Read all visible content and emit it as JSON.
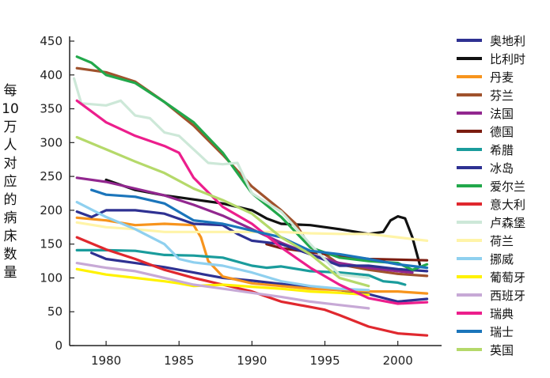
{
  "chart_data": {
    "type": "line",
    "ylabel": "每10万人对应的病床数量",
    "xlabel": "",
    "xlim": [
      1977.5,
      2003
    ],
    "ylim": [
      0,
      450
    ],
    "xticks": [
      1980,
      1985,
      1990,
      1995,
      2000
    ],
    "yticks": [
      0,
      50,
      100,
      150,
      200,
      250,
      300,
      350,
      400,
      450
    ],
    "grid": false,
    "legend": "right",
    "series": [
      {
        "name": "奥地利",
        "color": "#2e3192",
        "x": [
          1979,
          1980,
          1982,
          1984,
          1986,
          1988,
          1990,
          1992,
          1994,
          1996,
          1998,
          2000,
          2002
        ],
        "y": [
          137,
          128,
          122,
          116,
          108,
          100,
          96,
          91,
          87,
          82,
          76,
          65,
          69
        ]
      },
      {
        "name": "比利时",
        "color": "#111111",
        "x": [
          1980,
          1982,
          1984,
          1986,
          1988,
          1990,
          1991,
          1992,
          1994,
          1996,
          1998,
          1999,
          1999.5,
          2000,
          2000.5,
          2001,
          2001.5
        ],
        "y": [
          245,
          230,
          222,
          216,
          210,
          200,
          188,
          180,
          178,
          172,
          165,
          168,
          185,
          191,
          188,
          160,
          120
        ]
      },
      {
        "name": "丹麦",
        "color": "#f7941d",
        "x": [
          1978,
          1980,
          1982,
          1984,
          1986,
          1986.5,
          1987,
          1988,
          1990,
          1992,
          1994,
          1996,
          1998,
          2000,
          2002
        ],
        "y": [
          189,
          185,
          178,
          180,
          178,
          160,
          125,
          102,
          92,
          88,
          84,
          82,
          80,
          80,
          77
        ]
      },
      {
        "name": "芬兰",
        "color": "#a0522d",
        "x": [
          1978,
          1980,
          1982,
          1984,
          1986,
          1988,
          1990,
          1992,
          1993,
          1994,
          1995,
          1996,
          1998,
          2000,
          2002
        ],
        "y": [
          410,
          404,
          390,
          360,
          325,
          282,
          235,
          200,
          180,
          145,
          135,
          120,
          112,
          106,
          103
        ]
      },
      {
        "name": "法国",
        "color": "#92278f",
        "x": [
          1978,
          1980,
          1982,
          1984,
          1986,
          1988,
          1990,
          1992,
          1994,
          1996,
          1998,
          2000,
          2001
        ],
        "y": [
          248,
          242,
          232,
          222,
          208,
          192,
          172,
          152,
          135,
          122,
          115,
          110,
          108
        ]
      },
      {
        "name": "德国",
        "color": "#7b1c10",
        "x": [
          1991,
          1992,
          1994,
          1996,
          1998,
          2000,
          2002
        ],
        "y": [
          150,
          144,
          138,
          133,
          128,
          127,
          126
        ]
      },
      {
        "name": "希腊",
        "color": "#1a9c9c",
        "x": [
          1978,
          1980,
          1982,
          1984,
          1986,
          1988,
          1990,
          1991,
          1992,
          1994,
          1996,
          1998,
          1999,
          2000,
          2000.5
        ],
        "y": [
          141,
          141,
          140,
          134,
          133,
          130,
          118,
          115,
          117,
          110,
          108,
          104,
          95,
          93,
          90
        ]
      },
      {
        "name": "冰岛",
        "color": "#2e3192",
        "x": [
          1978,
          1979,
          1980,
          1982,
          1984,
          1986,
          1988,
          1989,
          1990,
          1992,
          1994,
          1996,
          1998,
          2000,
          2002
        ],
        "y": [
          198,
          190,
          200,
          200,
          195,
          180,
          178,
          165,
          155,
          150,
          135,
          118,
          118,
          113,
          110
        ]
      },
      {
        "name": "爱尔兰",
        "color": "#22a84b",
        "x": [
          1978,
          1979,
          1980,
          1982,
          1984,
          1986,
          1988,
          1990,
          1992,
          1994,
          1996,
          1998,
          2000,
          2001,
          2002
        ],
        "y": [
          427,
          418,
          400,
          388,
          360,
          330,
          285,
          225,
          190,
          145,
          130,
          125,
          122,
          112,
          120
        ]
      },
      {
        "name": "意大利",
        "color": "#e0282e",
        "x": [
          1978,
          1980,
          1982,
          1984,
          1986,
          1988,
          1990,
          1992,
          1994,
          1995,
          1996,
          1998,
          2000,
          2002
        ],
        "y": [
          160,
          142,
          128,
          112,
          100,
          90,
          80,
          65,
          57,
          53,
          45,
          28,
          18,
          15
        ]
      },
      {
        "name": "卢森堡",
        "color": "#cde8d8",
        "x": [
          1977.8,
          1978.3,
          1980,
          1981,
          1982,
          1983,
          1984,
          1985,
          1986,
          1987,
          1988,
          1989,
          1990,
          1992,
          1994,
          1996,
          1998
        ],
        "y": [
          395,
          358,
          355,
          362,
          340,
          336,
          315,
          310,
          290,
          270,
          268,
          270,
          225,
          198,
          150,
          105,
          100
        ]
      },
      {
        "name": "荷兰",
        "color": "#fff4a8",
        "x": [
          1978,
          1980,
          1982,
          1984,
          1986,
          1988,
          1990,
          1992,
          1994,
          1996,
          1998,
          2000,
          2002
        ],
        "y": [
          182,
          175,
          172,
          168,
          168,
          168,
          168,
          168,
          166,
          165,
          165,
          160,
          155
        ]
      },
      {
        "name": "挪威",
        "color": "#8fd0ef",
        "x": [
          1978,
          1980,
          1982,
          1984,
          1985,
          1986,
          1988,
          1990,
          1992,
          1994,
          1996,
          1998
        ],
        "y": [
          212,
          190,
          172,
          150,
          128,
          123,
          118,
          108,
          95,
          88,
          84,
          82
        ]
      },
      {
        "name": "葡萄牙",
        "color": "#fff200",
        "x": [
          1978,
          1980,
          1982,
          1984,
          1985,
          1986,
          1988,
          1990,
          1992,
          1994,
          1996,
          1998
        ],
        "y": [
          113,
          105,
          100,
          95,
          92,
          88,
          90,
          87,
          84,
          80,
          78,
          75
        ]
      },
      {
        "name": "西班牙",
        "color": "#c7a9d6",
        "x": [
          1978,
          1980,
          1982,
          1984,
          1986,
          1988,
          1990,
          1992,
          1994,
          1996,
          1998
        ],
        "y": [
          122,
          115,
          110,
          100,
          90,
          84,
          78,
          72,
          65,
          60,
          55
        ]
      },
      {
        "name": "瑞典",
        "color": "#ec1e8c",
        "x": [
          1978,
          1980,
          1982,
          1984,
          1985,
          1986,
          1988,
          1990,
          1992,
          1994,
          1996,
          1998,
          2000,
          2002
        ],
        "y": [
          362,
          330,
          310,
          295,
          285,
          248,
          205,
          180,
          145,
          115,
          90,
          70,
          62,
          64
        ]
      },
      {
        "name": "瑞士",
        "color": "#1b75bb",
        "x": [
          1979,
          1980,
          1982,
          1984,
          1986,
          1988,
          1990,
          1992,
          1994,
          1996,
          1998,
          2000,
          2002
        ],
        "y": [
          230,
          223,
          220,
          210,
          185,
          180,
          170,
          160,
          140,
          135,
          128,
          120,
          115
        ]
      },
      {
        "name": "英国",
        "color": "#b5d96a",
        "x": [
          1978,
          1980,
          1982,
          1984,
          1986,
          1988,
          1990,
          1992,
          1994,
          1996,
          1998
        ],
        "y": [
          308,
          290,
          272,
          255,
          232,
          215,
          195,
          160,
          135,
          100,
          88
        ]
      }
    ]
  }
}
